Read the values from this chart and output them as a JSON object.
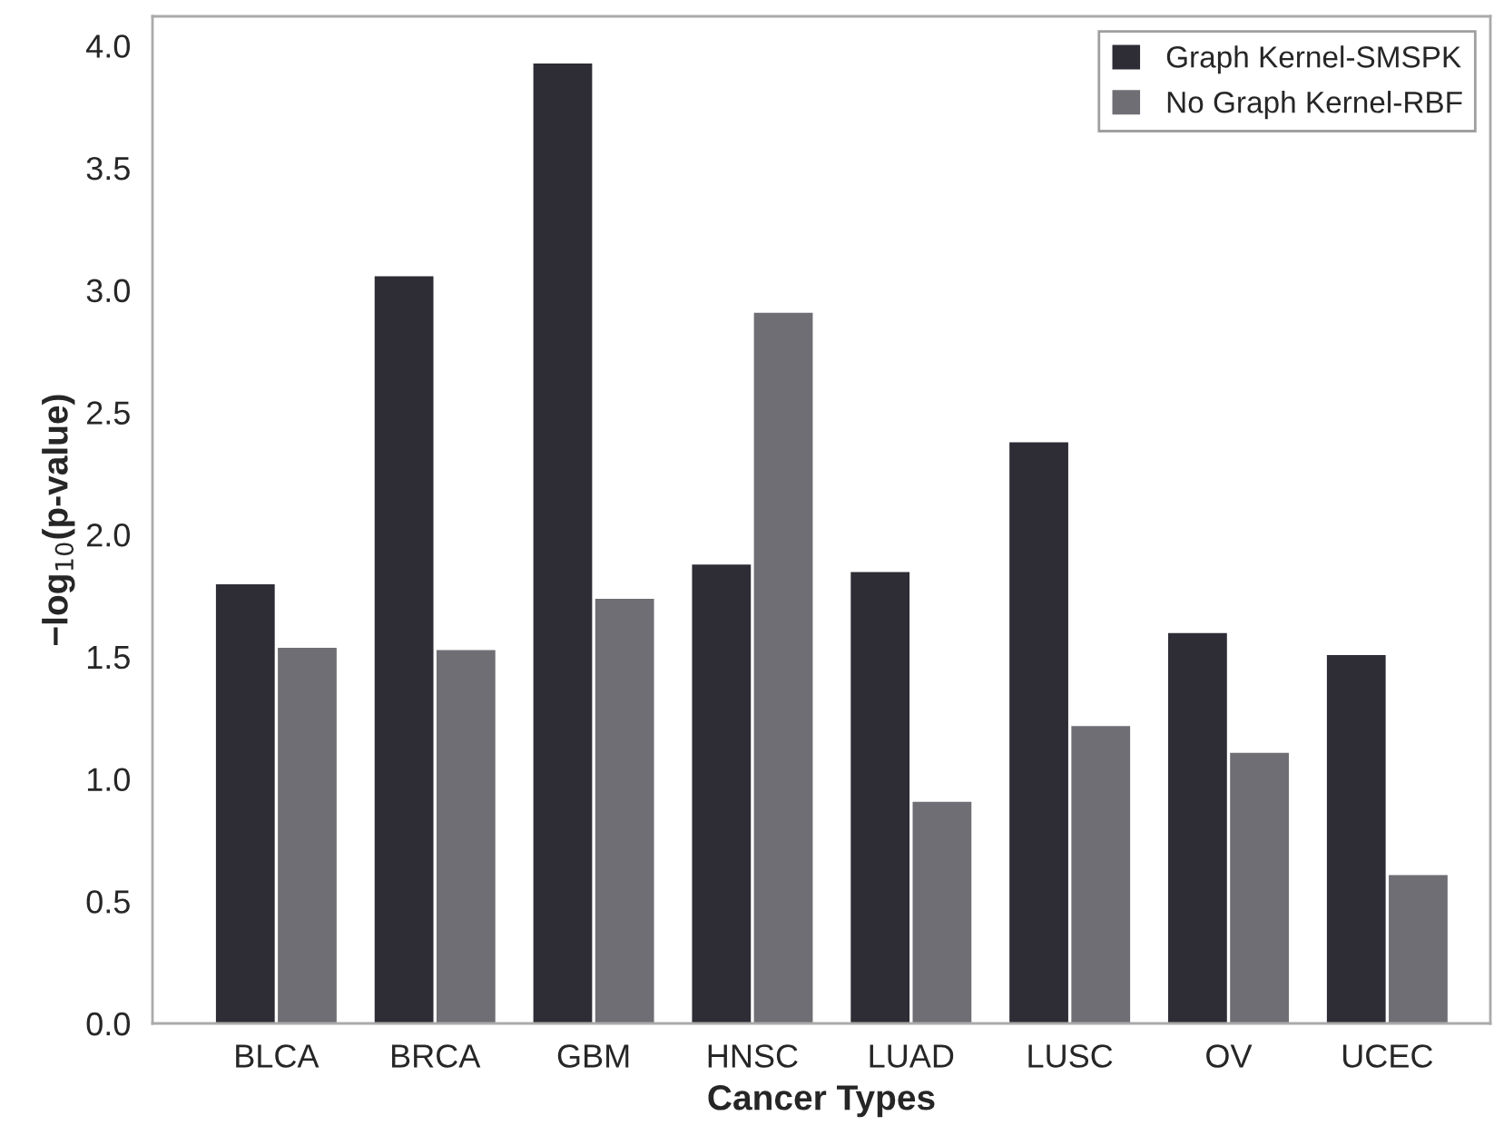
{
  "chart_data": {
    "type": "bar",
    "xlabel": "Cancer Types",
    "ylabel": "−log$_{10}$(p-value)",
    "categories": [
      "BLCA",
      "BRCA",
      "GBM",
      "HNSC",
      "LUAD",
      "LUSC",
      "OV",
      "UCEC"
    ],
    "series": [
      {
        "name": "Graph Kernel-SMSPK",
        "color": "#2e2c35",
        "values": [
          1.8,
          3.06,
          3.93,
          1.88,
          1.85,
          2.38,
          1.6,
          1.51
        ]
      },
      {
        "name": "No Graph Kernel-RBF",
        "color": "#6f6e74",
        "values": [
          1.54,
          1.53,
          1.74,
          2.91,
          0.91,
          1.22,
          1.11,
          0.61
        ]
      }
    ],
    "ylim": [
      0,
      4.12
    ],
    "yticks": [
      {
        "value": 0,
        "label": "0.0"
      },
      {
        "value": 0.5,
        "label": "0.5"
      },
      {
        "value": 1,
        "label": "1.0"
      },
      {
        "value": 1.5,
        "label": "1.5"
      },
      {
        "value": 2,
        "label": "2.0"
      },
      {
        "value": 2.5,
        "label": "2.5"
      },
      {
        "value": 3,
        "label": "3.0"
      },
      {
        "value": 3.5,
        "label": "3.5"
      },
      {
        "value": 4,
        "label": "4.0"
      }
    ],
    "grid": false,
    "legend": "top right"
  }
}
